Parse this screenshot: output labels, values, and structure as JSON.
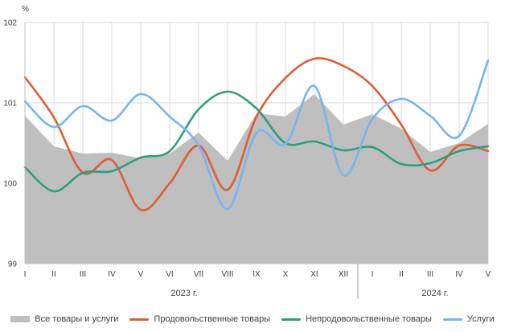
{
  "chart_data": {
    "type": "line",
    "ylabel": "%",
    "ylim": [
      99,
      102
    ],
    "yticks": [
      "99",
      "100",
      "101",
      "102"
    ],
    "categories": [
      "I",
      "II",
      "III",
      "IV",
      "V",
      "VI",
      "VII",
      "VIII",
      "IX",
      "X",
      "XI",
      "XII",
      "I",
      "II",
      "III",
      "IV",
      "V"
    ],
    "years": [
      {
        "label": "2023 г.",
        "span": [
          0,
          11
        ]
      },
      {
        "label": "2024 г.",
        "span": [
          12,
          16
        ]
      }
    ],
    "series": [
      {
        "name": "Все товары и услуги",
        "kind": "area",
        "color": "#bfbfbf",
        "values": [
          100.84,
          100.46,
          100.37,
          100.38,
          100.31,
          100.37,
          100.63,
          100.28,
          100.87,
          100.83,
          101.11,
          100.73,
          100.86,
          100.68,
          100.39,
          100.5,
          100.74
        ]
      },
      {
        "name": "Продовольственные товары",
        "kind": "line",
        "color": "#e05c35",
        "values": [
          101.32,
          100.82,
          100.13,
          100.29,
          99.67,
          100.0,
          100.47,
          99.92,
          100.83,
          101.31,
          101.55,
          101.46,
          101.21,
          100.73,
          100.16,
          100.47,
          100.4
        ]
      },
      {
        "name": "Непродовольственные товары",
        "kind": "line",
        "color": "#2f9e7e",
        "values": [
          100.2,
          99.9,
          100.13,
          100.15,
          100.32,
          100.4,
          100.92,
          101.14,
          100.93,
          100.5,
          100.52,
          100.41,
          100.45,
          100.24,
          100.25,
          100.4,
          100.46
        ]
      },
      {
        "name": "Услуги",
        "kind": "line",
        "color": "#74b6f2",
        "values": [
          101.02,
          100.7,
          100.96,
          100.78,
          101.11,
          100.83,
          100.47,
          99.68,
          100.63,
          100.49,
          101.21,
          100.1,
          100.8,
          101.05,
          100.84,
          100.59,
          101.53
        ]
      }
    ]
  }
}
